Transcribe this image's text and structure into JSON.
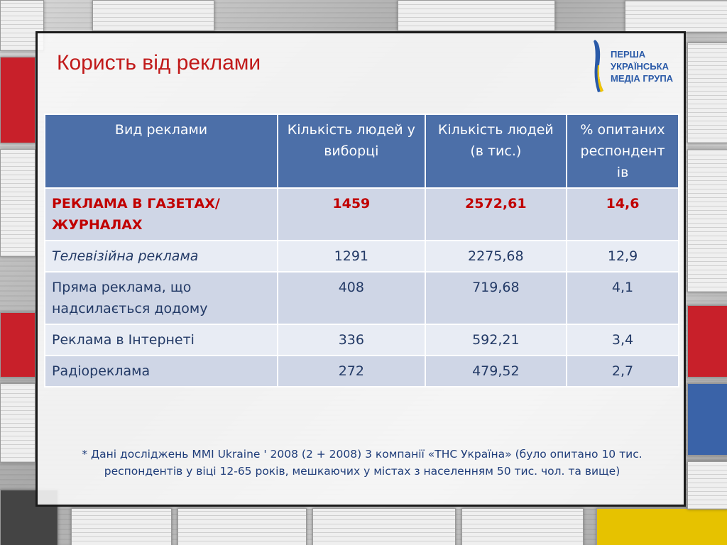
{
  "slide": {
    "title": "Користь від реклами",
    "logo": {
      "lines": [
        "ПЕРША",
        "УКРАЇНСЬКА",
        "МЕДІА ГРУПА"
      ],
      "colors": {
        "blue": "#2a5aa8",
        "yellow": "#f2c500"
      }
    }
  },
  "table": {
    "headers": [
      "Вид реклами",
      "Кількість людей у виборці",
      "Кількість людей (в тис.)",
      "% опитаних респондент ів"
    ],
    "rows": [
      {
        "type": "РЕКЛАМА В ГАЗЕТАХ/ЖУРНАЛАХ",
        "sample": "1459",
        "thousands": "2572,61",
        "percent": "14,6"
      },
      {
        "type": "Телевізійна реклама",
        "sample": "1291",
        "thousands": "2275,68",
        "percent": "12,9"
      },
      {
        "type": "Пряма реклама, що надсилається додому",
        "sample": "408",
        "thousands": "719,68",
        "percent": "4,1"
      },
      {
        "type": "Реклама в Інтернеті",
        "sample": "336",
        "thousands": "592,21",
        "percent": "3,4"
      },
      {
        "type": "Радіореклама",
        "sample": "272",
        "thousands": "479,52",
        "percent": "2,7"
      }
    ],
    "colors": {
      "header_bg": "#4c6fa8",
      "highlight_text": "#c10000",
      "row_odd": "#cfd6e6",
      "row_even": "#e8ecf4"
    }
  },
  "footnote": "* Дані досліджень MMI Ukraine ' 2008 (2 + 2008) 3 компанії «ТНС Україна» (було опитано 10 тис. респондентів у віці 12-65 років, мешкаючих у містах з населенням 50 тис. чол. та вище)"
}
